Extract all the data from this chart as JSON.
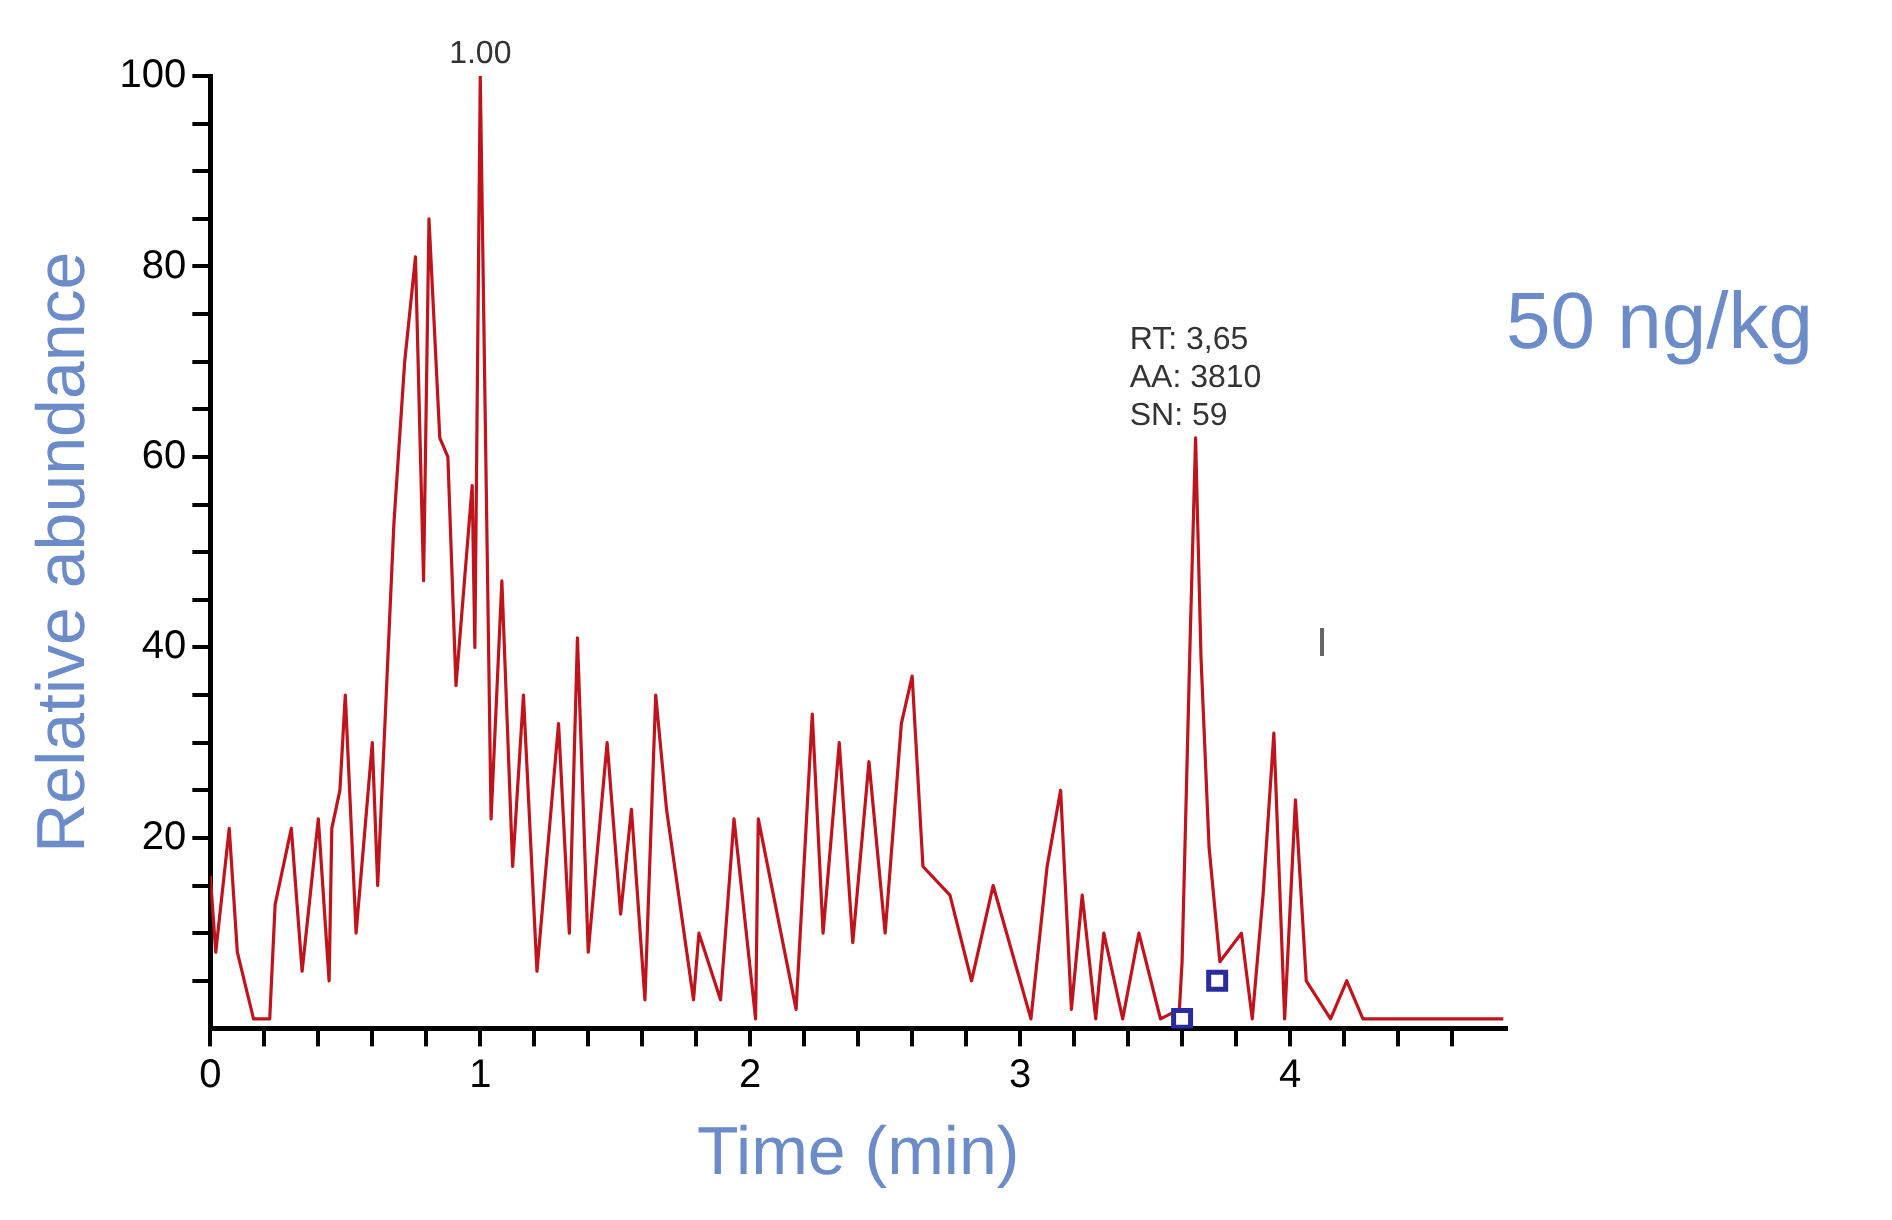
{
  "chart_data": {
    "type": "line",
    "xlabel": "Time (min)",
    "ylabel": "Relative abundance",
    "xlim": [
      0,
      4.8
    ],
    "ylim": [
      0,
      100
    ],
    "xticks": [
      0,
      {
        "value": 0.2,
        "label": null
      },
      {
        "value": 0.4,
        "label": null
      },
      {
        "value": 0.6,
        "label": null
      },
      {
        "value": 0.8,
        "label": null
      },
      1,
      {
        "value": 1.2,
        "label": null
      },
      {
        "value": 1.4,
        "label": null
      },
      {
        "value": 1.6,
        "label": null
      },
      {
        "value": 1.8,
        "label": null
      },
      2,
      {
        "value": 2.2,
        "label": null
      },
      {
        "value": 2.4,
        "label": null
      },
      {
        "value": 2.6,
        "label": null
      },
      {
        "value": 2.8,
        "label": null
      },
      3,
      {
        "value": 3.2,
        "label": null
      },
      {
        "value": 3.4,
        "label": null
      },
      {
        "value": 3.6,
        "label": null
      },
      {
        "value": 3.8,
        "label": null
      },
      4,
      {
        "value": 4.2,
        "label": null
      },
      {
        "value": 4.4,
        "label": null
      },
      {
        "value": 4.6,
        "label": null
      }
    ],
    "yticks": [
      {
        "value": 5,
        "label": null
      },
      {
        "value": 10,
        "label": null
      },
      {
        "value": 15,
        "label": null
      },
      20,
      {
        "value": 25,
        "label": null
      },
      {
        "value": 30,
        "label": null
      },
      {
        "value": 35,
        "label": null
      },
      40,
      {
        "value": 45,
        "label": null
      },
      {
        "value": 50,
        "label": null
      },
      {
        "value": 55,
        "label": null
      },
      60,
      {
        "value": 65,
        "label": null
      },
      {
        "value": 70,
        "label": null
      },
      {
        "value": 75,
        "label": null
      },
      80,
      {
        "value": 85,
        "label": null
      },
      {
        "value": 90,
        "label": null
      },
      {
        "value": 95,
        "label": null
      },
      100
    ],
    "grid": false,
    "legend": false,
    "marker": "none",
    "line_style": "solid",
    "series": [
      {
        "type": "line",
        "color": "#c0141c",
        "x": [
          0,
          0.02,
          0.07,
          0.1,
          0.16,
          0.22,
          0.24,
          0.3,
          0.34,
          0.4,
          0.44,
          0.45,
          0.48,
          0.5,
          0.54,
          0.6,
          0.62,
          0.68,
          0.72,
          0.76,
          0.79,
          0.81,
          0.85,
          0.88,
          0.91,
          0.97,
          0.98,
          1.0,
          1.04,
          1.08,
          1.12,
          1.16,
          1.21,
          1.29,
          1.33,
          1.36,
          1.4,
          1.47,
          1.52,
          1.56,
          1.61,
          1.65,
          1.69,
          1.79,
          1.81,
          1.89,
          1.94,
          2.02,
          2.03,
          2.1,
          2.17,
          2.23,
          2.27,
          2.33,
          2.38,
          2.44,
          2.5,
          2.56,
          2.6,
          2.64,
          2.74,
          2.82,
          2.9,
          3.04,
          3.1,
          3.15,
          3.19,
          3.23,
          3.28,
          3.31,
          3.38,
          3.44,
          3.52,
          3.59,
          3.6,
          3.63,
          3.65,
          3.67,
          3.7,
          3.74,
          3.82,
          3.86,
          3.9,
          3.94,
          3.98,
          4.02,
          4.06,
          4.15,
          4.21,
          4.27,
          4.52,
          4.79
        ],
        "values": [
          16,
          8,
          21,
          8,
          1,
          1,
          13,
          21,
          6,
          22,
          5,
          21,
          25,
          35,
          10,
          30,
          15,
          53,
          70,
          81,
          47,
          85,
          62,
          60,
          36,
          57,
          40,
          100,
          22,
          47,
          17,
          35,
          6,
          32,
          10,
          41,
          8,
          30,
          12,
          23,
          3,
          35,
          23,
          3,
          10,
          3,
          22,
          1,
          22,
          12,
          2,
          33,
          10,
          30,
          9,
          28,
          10,
          32,
          37,
          17,
          14,
          5,
          15,
          1,
          17,
          25,
          2,
          14,
          1,
          10,
          1,
          10,
          1,
          2,
          7,
          41,
          62,
          39,
          19,
          7,
          10,
          1,
          14,
          31,
          1,
          24,
          5,
          1,
          5,
          1,
          1,
          1
        ]
      },
      {
        "type": "scatter",
        "color": "#2b2ba0",
        "marker": "square",
        "x": [
          3.6,
          3.73
        ],
        "values": [
          1,
          5
        ]
      }
    ],
    "annotations": [
      {
        "text": "1.00",
        "x": 1.0,
        "y": 100
      },
      {
        "text": "RT: 3,65\nAA: 3810\nSN: 59",
        "x": 3.65,
        "y": 62
      },
      "50 ng/kg"
    ]
  }
}
